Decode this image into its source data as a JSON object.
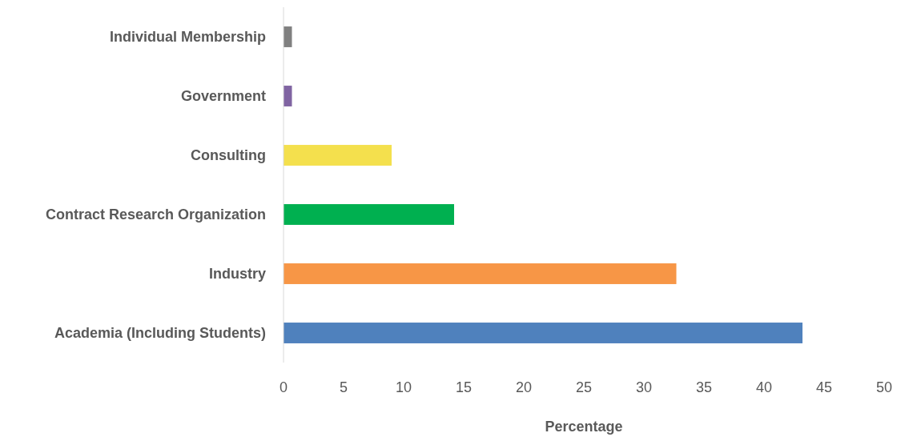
{
  "chart_data": {
    "type": "bar",
    "orientation": "horizontal",
    "xlabel": "Percentage",
    "categories": [
      "Individual Membership",
      "Government",
      "Consulting",
      "Contract Research Organization",
      "Industry",
      "Academia (Including Students)"
    ],
    "values": [
      0.7,
      0.7,
      9,
      14.2,
      32.7,
      43.2
    ],
    "colors": [
      "#808080",
      "#8064a2",
      "#f4e04d",
      "#00b050",
      "#f79646",
      "#4f81bd"
    ],
    "xlim": [
      0,
      50
    ],
    "xticks": [
      0,
      5,
      10,
      15,
      20,
      25,
      30,
      35,
      40,
      45,
      50
    ]
  }
}
